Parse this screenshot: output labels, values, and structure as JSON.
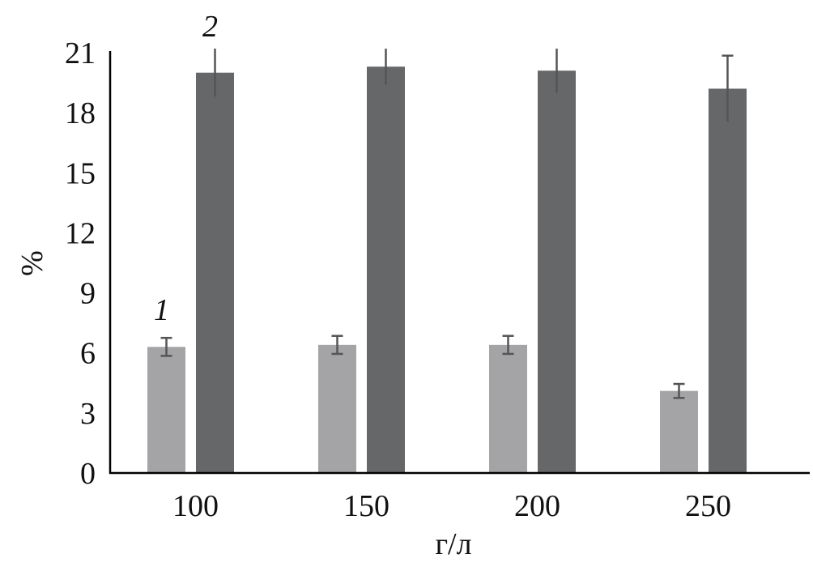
{
  "chart_data": {
    "type": "bar",
    "title": "",
    "xlabel": "г/л",
    "ylabel": "%",
    "categories": [
      "100",
      "150",
      "200",
      "250"
    ],
    "ylim": [
      0,
      21
    ],
    "yticks": [
      "0",
      "3",
      "6",
      "9",
      "12",
      "15",
      "18",
      "21"
    ],
    "grid": false,
    "series": [
      {
        "name": "1",
        "color": "#a4a4a6",
        "values": [
          6.3,
          6.4,
          6.4,
          4.1
        ],
        "errors": [
          0.45,
          0.45,
          0.45,
          0.35
        ]
      },
      {
        "name": "2",
        "color": "#666769",
        "values": [
          20.0,
          20.3,
          20.1,
          19.2
        ],
        "errors": [
          1.2,
          0.9,
          1.1,
          1.65
        ]
      }
    ]
  }
}
